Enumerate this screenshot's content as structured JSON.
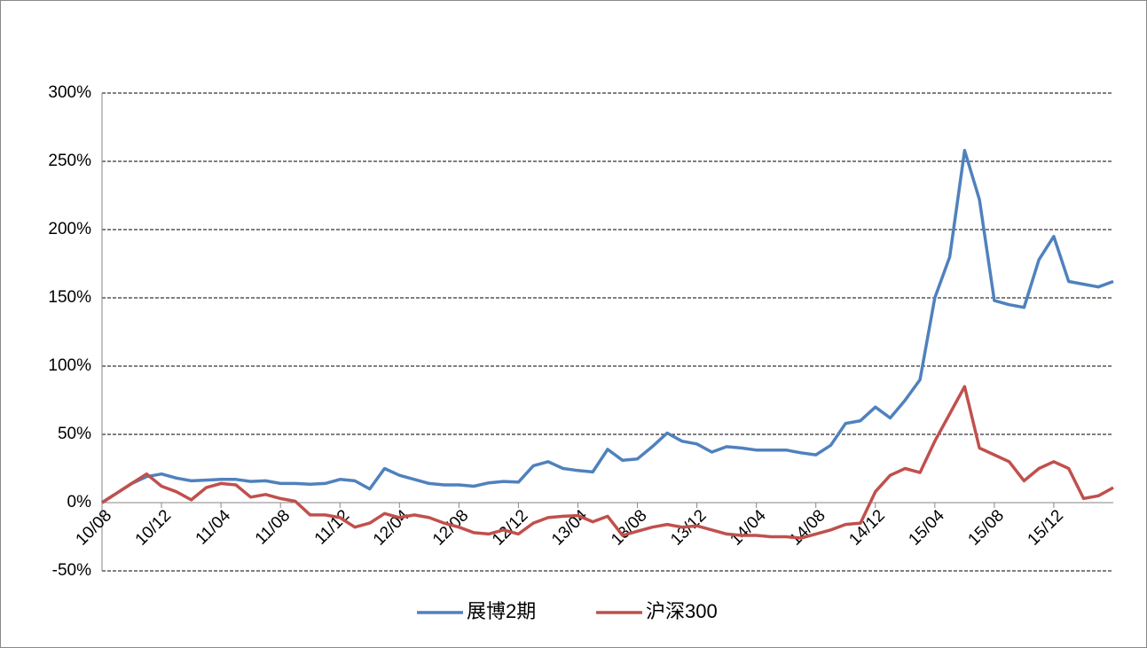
{
  "chart_data": {
    "type": "line",
    "categories": [
      "10/08",
      null,
      null,
      null,
      "10/12",
      null,
      null,
      null,
      "11/04",
      null,
      null,
      null,
      "11/08",
      null,
      null,
      null,
      "11/12",
      null,
      null,
      null,
      "12/04",
      null,
      null,
      null,
      "12/08",
      null,
      null,
      null,
      "12/12",
      null,
      null,
      null,
      "13/04",
      null,
      null,
      null,
      "13/08",
      null,
      null,
      null,
      "13/12",
      null,
      null,
      null,
      "14/04",
      null,
      null,
      null,
      "14/08",
      null,
      null,
      null,
      "14/12",
      null,
      null,
      null,
      "15/04",
      null,
      null,
      null,
      "15/08",
      null,
      null,
      null,
      "15/12",
      null,
      null,
      null,
      null
    ],
    "series": [
      {
        "name": "展博2期",
        "color": "#4f81bd",
        "values": [
          0,
          7,
          14,
          19,
          21,
          18,
          16,
          16.5,
          17,
          17,
          15.5,
          16,
          14,
          14,
          13.5,
          14,
          17,
          16,
          10,
          25,
          20,
          17,
          14,
          13,
          13,
          12,
          14.5,
          15.5,
          15,
          27,
          30,
          25,
          23.5,
          22.5,
          39,
          31,
          32,
          41,
          51,
          45,
          43,
          37,
          41,
          40,
          38.5,
          38.5,
          38.5,
          36.5,
          35,
          42,
          58,
          60,
          70,
          62,
          75,
          90,
          150,
          180,
          258,
          222,
          148,
          145,
          143,
          178,
          195,
          162,
          160,
          158,
          162
        ]
      },
      {
        "name": "沪深300",
        "color": "#c0504d",
        "values": [
          0,
          7,
          14,
          21,
          12,
          8,
          2,
          11,
          14,
          13,
          4,
          6,
          3,
          1,
          -9,
          -9,
          -11,
          -18,
          -15,
          -8,
          -11,
          -9,
          -11,
          -15,
          -18,
          -22,
          -23,
          -20,
          -23,
          -15,
          -11,
          -10,
          -9.5,
          -14,
          -10,
          -24,
          -21,
          -18,
          -16,
          -18,
          -17,
          -20,
          -23,
          -24,
          -24,
          -25,
          -25,
          -26,
          -23,
          -20,
          -16,
          -15,
          8,
          20,
          25,
          22,
          45,
          65,
          85,
          40,
          35,
          30,
          16,
          25,
          30,
          25,
          3,
          5,
          11
        ]
      }
    ],
    "ylim": [
      -50,
      300
    ],
    "yticks": [
      {
        "value": -50,
        "label": "-50%"
      },
      {
        "value": 0,
        "label": "0%"
      },
      {
        "value": 50,
        "label": "50%"
      },
      {
        "value": 100,
        "label": "100%"
      },
      {
        "value": 150,
        "label": "150%"
      },
      {
        "value": 200,
        "label": "200%"
      },
      {
        "value": 250,
        "label": "250%"
      },
      {
        "value": 300,
        "label": "300%"
      }
    ],
    "grid": true,
    "legend": "bottom"
  }
}
